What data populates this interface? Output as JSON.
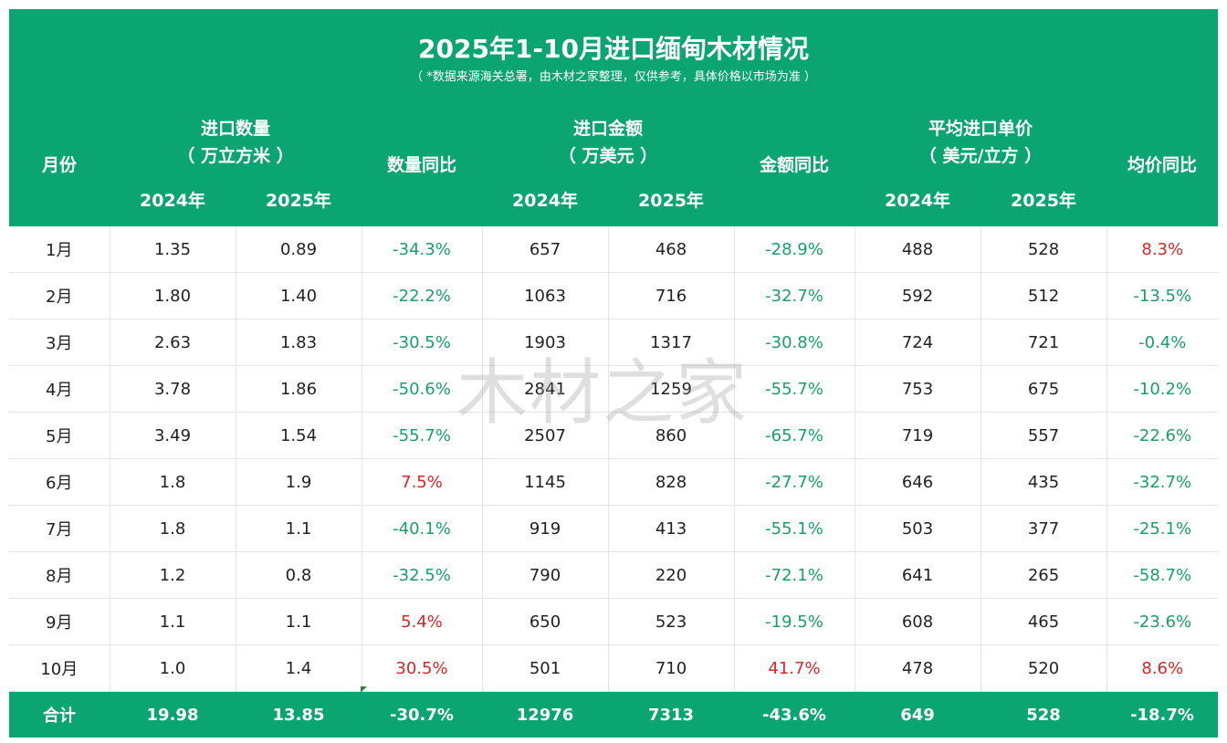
{
  "title": "2025年1-10月进口缅甸木材情况",
  "subtitle": "（ *数据来源海关总署，由木材之家整理，仅供参考，具体价格以市场为准 ）",
  "watermark": "木材之家",
  "headers": {
    "month": "月份",
    "qty_group_line1": "进口数量",
    "qty_group_line2": "（ 万立方米 ）",
    "qty_yoy": "数量同比",
    "amt_group_line1": "进口金额",
    "amt_group_line2": "（ 万美元 ）",
    "amt_yoy": "金额同比",
    "price_group_line1": "平均进口单价",
    "price_group_line2": "（ 美元/立方 ）",
    "price_yoy": "均价同比",
    "y2024": "2024年",
    "y2025": "2025年"
  },
  "colors": {
    "header_bg": "#0aa571",
    "negative": "#16a06a",
    "positive": "#e02424"
  },
  "rows": [
    {
      "month": "1月",
      "q24": "1.35",
      "q25": "0.89",
      "qy": "-34.3%",
      "a24": "657",
      "a25": "468",
      "ay": "-28.9%",
      "p24": "488",
      "p25": "528",
      "py": "8.3%"
    },
    {
      "month": "2月",
      "q24": "1.80",
      "q25": "1.40",
      "qy": "-22.2%",
      "a24": "1063",
      "a25": "716",
      "ay": "-32.7%",
      "p24": "592",
      "p25": "512",
      "py": "-13.5%"
    },
    {
      "month": "3月",
      "q24": "2.63",
      "q25": "1.83",
      "qy": "-30.5%",
      "a24": "1903",
      "a25": "1317",
      "ay": "-30.8%",
      "p24": "724",
      "p25": "721",
      "py": "-0.4%"
    },
    {
      "month": "4月",
      "q24": "3.78",
      "q25": "1.86",
      "qy": "-50.6%",
      "a24": "2841",
      "a25": "1259",
      "ay": "-55.7%",
      "p24": "753",
      "p25": "675",
      "py": "-10.2%"
    },
    {
      "month": "5月",
      "q24": "3.49",
      "q25": "1.54",
      "qy": "-55.7%",
      "a24": "2507",
      "a25": "860",
      "ay": "-65.7%",
      "p24": "719",
      "p25": "557",
      "py": "-22.6%"
    },
    {
      "month": "6月",
      "q24": "1.8",
      "q25": "1.9",
      "qy": "7.5%",
      "a24": "1145",
      "a25": "828",
      "ay": "-27.7%",
      "p24": "646",
      "p25": "435",
      "py": "-32.7%"
    },
    {
      "month": "7月",
      "q24": "1.8",
      "q25": "1.1",
      "qy": "-40.1%",
      "a24": "919",
      "a25": "413",
      "ay": "-55.1%",
      "p24": "503",
      "p25": "377",
      "py": "-25.1%"
    },
    {
      "month": "8月",
      "q24": "1.2",
      "q25": "0.8",
      "qy": "-32.5%",
      "a24": "790",
      "a25": "220",
      "ay": "-72.1%",
      "p24": "641",
      "p25": "265",
      "py": "-58.7%"
    },
    {
      "month": "9月",
      "q24": "1.1",
      "q25": "1.1",
      "qy": "5.4%",
      "a24": "650",
      "a25": "523",
      "ay": "-19.5%",
      "p24": "608",
      "p25": "465",
      "py": "-23.6%"
    },
    {
      "month": "10月",
      "q24": "1.0",
      "q25": "1.4",
      "qy": "30.5%",
      "a24": "501",
      "a25": "710",
      "ay": "41.7%",
      "p24": "478",
      "p25": "520",
      "py": "8.6%"
    }
  ],
  "total": {
    "month": "合计",
    "q24": "19.98",
    "q25": "13.85",
    "qy": "-30.7%",
    "a24": "12976",
    "a25": "7313",
    "ay": "-43.6%",
    "p24": "649",
    "p25": "528",
    "py": "-18.7%"
  }
}
